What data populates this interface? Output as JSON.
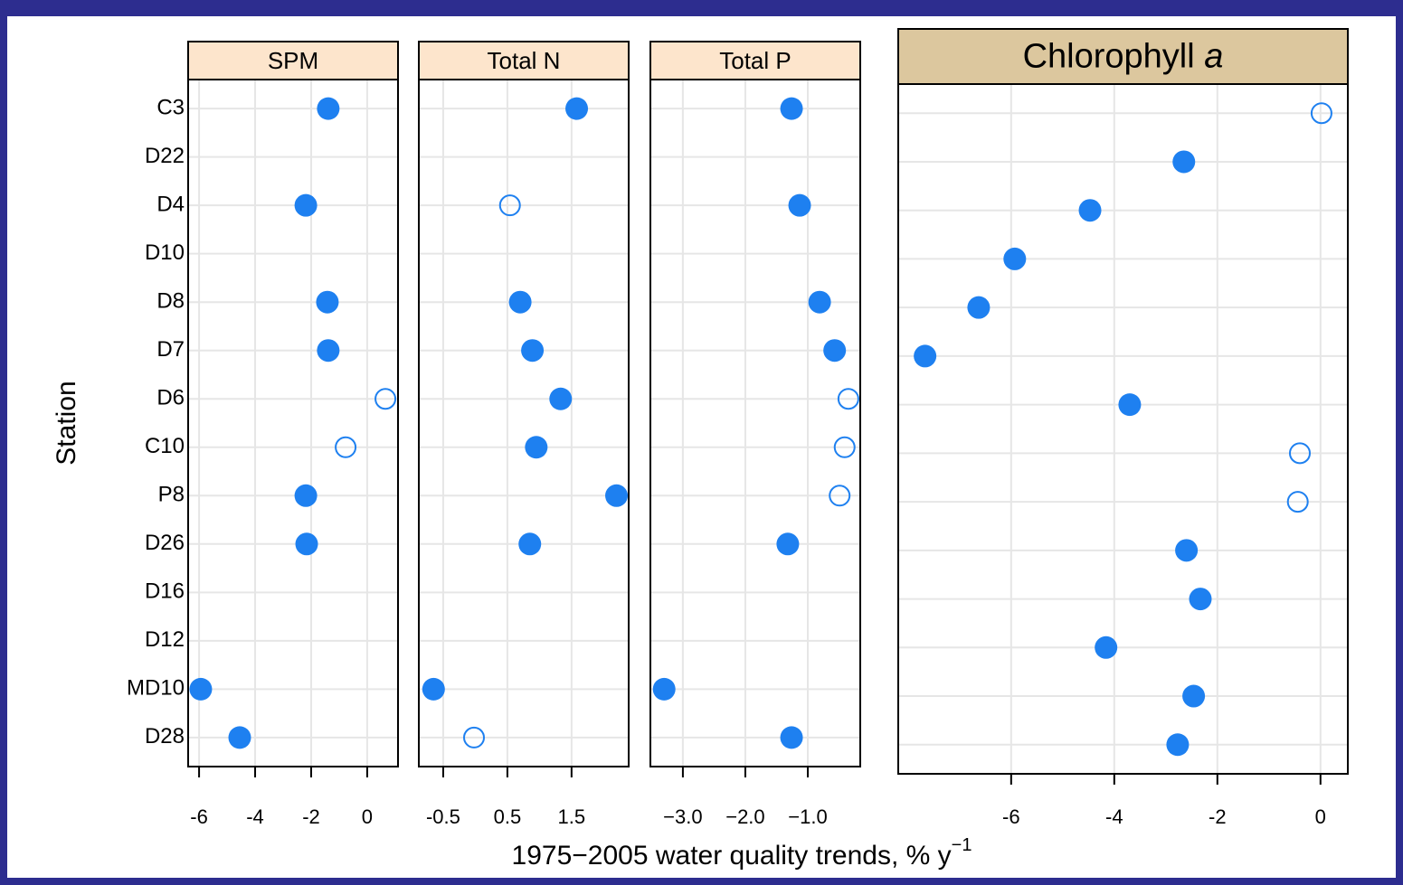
{
  "categories": [
    "C3",
    "D22",
    "D4",
    "D10",
    "D8",
    "D7",
    "D6",
    "C10",
    "P8",
    "D26",
    "D16",
    "D12",
    "MD10",
    "D28"
  ],
  "ylabel": "Station",
  "xlabel": "1975−2005 water quality trends, % y",
  "xlabel_superscript": "−1",
  "chart_data": [
    {
      "type": "dot",
      "title": "SPM",
      "color": "#1e80f0",
      "header_color": "#fde5cc",
      "values": [
        -1.39,
        null,
        -2.19,
        null,
        -1.42,
        -1.39,
        0.65,
        -0.77,
        -2.19,
        -2.16,
        null,
        null,
        -5.94,
        -4.55
      ],
      "filled": [
        true,
        null,
        true,
        null,
        true,
        true,
        false,
        false,
        true,
        true,
        null,
        null,
        true,
        true
      ],
      "xlim": [
        -6.39,
        1.1
      ],
      "xticks": [
        -6,
        -4,
        -2,
        0
      ],
      "grid": true
    },
    {
      "type": "dot",
      "title": "Total N",
      "color": "#1e80f0",
      "header_color": "#fde5cc",
      "values": [
        1.58,
        null,
        0.54,
        null,
        0.7,
        0.89,
        1.33,
        0.95,
        2.2,
        0.85,
        null,
        null,
        -0.65,
        -0.02
      ],
      "filled": [
        true,
        null,
        false,
        null,
        true,
        true,
        true,
        true,
        true,
        true,
        null,
        null,
        true,
        false
      ],
      "xlim": [
        -0.88,
        2.39
      ],
      "xticks": [
        -0.5,
        0.5,
        1.5
      ],
      "grid": true
    },
    {
      "type": "dot",
      "title": "Total P",
      "color": "#1e80f0",
      "header_color": "#fde5cc",
      "values": [
        -1.26,
        null,
        -1.13,
        null,
        -0.81,
        -0.57,
        -0.35,
        -0.41,
        -0.49,
        -1.32,
        null,
        null,
        -3.3,
        -1.26
      ],
      "filled": [
        true,
        null,
        true,
        null,
        true,
        true,
        false,
        false,
        false,
        true,
        null,
        null,
        true,
        true
      ],
      "xlim": [
        -3.52,
        -0.16
      ],
      "xticks": [
        {
          "value": -3,
          "label": "−3.0"
        },
        {
          "value": -2,
          "label": "−2.0"
        },
        {
          "value": -1,
          "label": "−1.0"
        }
      ],
      "grid": true
    },
    {
      "type": "dot",
      "title": "Chlorophyll",
      "title_italic": "a",
      "color": "#1e80f0",
      "header_color": "#dcc79e",
      "values": [
        0.02,
        -2.65,
        -4.47,
        -5.93,
        -6.63,
        -7.67,
        -3.7,
        -0.4,
        -0.44,
        -2.6,
        -2.33,
        -4.16,
        -2.46,
        -2.77
      ],
      "filled": [
        false,
        true,
        true,
        true,
        true,
        true,
        true,
        false,
        false,
        true,
        true,
        true,
        true,
        true
      ],
      "xlim": [
        -8.19,
        0.53
      ],
      "xticks": [
        -6,
        -4,
        -2,
        0
      ],
      "grid": true
    }
  ]
}
